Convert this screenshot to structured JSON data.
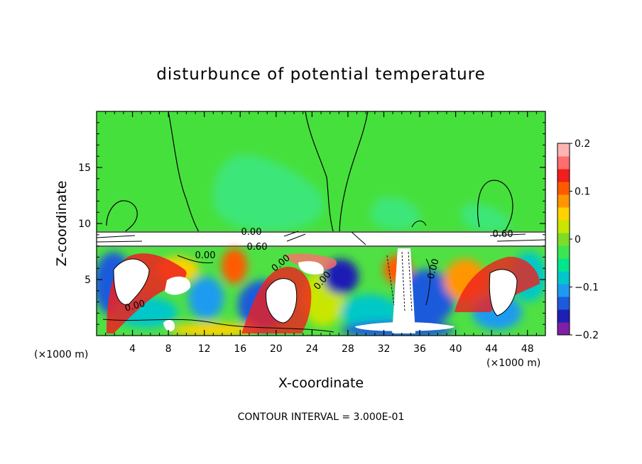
{
  "chart_data": {
    "type": "heatmap",
    "title": "disturbunce of potential temperature",
    "xlabel": "X-coordinate",
    "ylabel": "Z-coordinate",
    "x_unit_left": "(×1000 m)",
    "x_unit_right": "(×1000 m)",
    "xlim": [
      0,
      50
    ],
    "ylim": [
      0,
      20
    ],
    "x_ticks": [
      4,
      8,
      12,
      16,
      20,
      24,
      28,
      32,
      36,
      40,
      44,
      48
    ],
    "y_ticks": [
      5,
      10,
      15
    ],
    "footer": "CONTOUR INTERVAL = 3.000E-01",
    "colorbar": {
      "min": -0.2,
      "max": 0.2,
      "ticks": [
        "0.2",
        "0.1",
        "0",
        "−0.1",
        "−0.2"
      ],
      "colors": [
        "#7f1fa6",
        "#1f1fb4",
        "#1e5adc",
        "#1e9bf0",
        "#00c8c8",
        "#00e68c",
        "#3ce650",
        "#7ddc28",
        "#c8e600",
        "#ffd200",
        "#ff9600",
        "#ff5a00",
        "#f01e1e",
        "#ff6e6e",
        "#ffb4b4"
      ]
    },
    "contour_labels": [
      "0.00",
      "0.60",
      "0.00",
      "0.00",
      "0.00",
      "0.00",
      "0.00",
      "0.60"
    ]
  }
}
